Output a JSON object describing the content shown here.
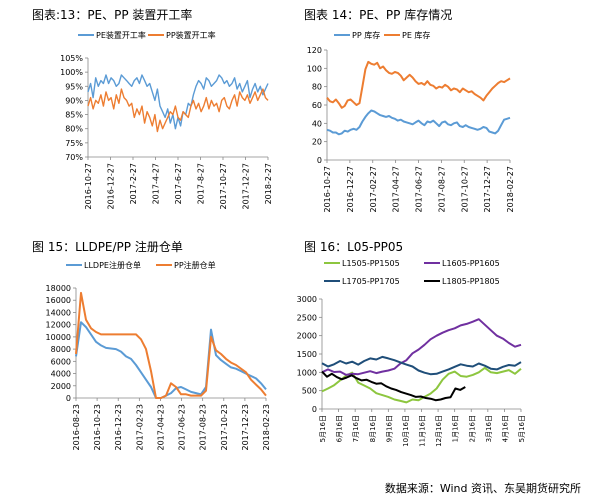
{
  "titles": {
    "c13": "图表:13：PE、PP 装置开工率",
    "c14": "图表 14：PE、PP 库存情况",
    "c15": "图 15：LLDPE/PP 注册仓单",
    "c16": "图 16：L05-PP05"
  },
  "source": "数据来源：Wind 资讯、东吴期货研究所",
  "colors": {
    "blue": "#5b9bd5",
    "orange": "#ed7d31",
    "green": "#8dc63f",
    "purple": "#7030a0",
    "navy": "#1f4e79",
    "black": "#000000"
  },
  "chart_data": [
    {
      "type": "line",
      "title": "图表:13：PE、PP 装置开工率",
      "x_ticks": [
        "2016-10-27",
        "2016-12-27",
        "2017-2-27",
        "2017-4-27",
        "2017-6-27",
        "2017-8-27",
        "2017-10-27",
        "2017-12-27",
        "2018-2-27"
      ],
      "y_ticks": [
        "70%",
        "75%",
        "80%",
        "85%",
        "90%",
        "95%",
        "100%",
        "105%"
      ],
      "ylim": [
        70,
        105
      ],
      "series": [
        {
          "name": "PE装置开工率",
          "color": "#5b9bd5",
          "values": [
            93,
            96,
            91,
            98,
            95,
            97,
            96,
            99,
            96,
            98,
            97,
            95,
            96,
            99,
            98,
            97,
            96,
            95,
            97,
            98,
            96,
            99,
            97,
            95,
            96,
            93,
            90,
            94,
            88,
            86,
            84,
            87,
            82,
            85,
            80,
            84,
            81,
            86,
            85,
            89,
            88,
            92,
            95,
            97,
            96,
            94,
            98,
            97,
            95,
            96,
            97,
            99,
            98,
            96,
            97,
            95,
            96,
            98,
            94,
            96,
            93,
            95,
            97,
            91,
            94,
            96,
            93,
            95,
            92,
            94,
            96
          ]
        },
        {
          "name": "PP装置开工率",
          "color": "#ed7d31",
          "values": [
            88,
            91,
            87,
            90,
            89,
            92,
            88,
            93,
            90,
            91,
            87,
            92,
            89,
            94,
            91,
            90,
            88,
            89,
            84,
            87,
            85,
            88,
            82,
            86,
            84,
            81,
            85,
            79,
            83,
            80,
            82,
            84,
            86,
            85,
            88,
            84,
            83,
            86,
            85,
            84,
            88,
            90,
            87,
            89,
            86,
            88,
            91,
            87,
            90,
            88,
            89,
            86,
            90,
            91,
            88,
            87,
            90,
            92,
            88,
            93,
            91,
            90,
            92,
            89,
            91,
            93,
            90,
            92,
            94,
            91,
            90
          ]
        }
      ]
    },
    {
      "type": "line",
      "title": "图表 14：PE、PP 库存情况",
      "x_ticks": [
        "2016-10-27",
        "2016-12-27",
        "2017-02-27",
        "2017-04-27",
        "2017-06-27",
        "2017-08-27",
        "2017-10-27",
        "2017-12-27",
        "2018-02-27"
      ],
      "y_ticks": [
        "0",
        "20",
        "40",
        "60",
        "80",
        "100",
        "120"
      ],
      "ylim": [
        0,
        120
      ],
      "series": [
        {
          "name": "PP 库存",
          "color": "#5b9bd5",
          "values": [
            33,
            32,
            30,
            30,
            28,
            29,
            32,
            31,
            33,
            34,
            33,
            36,
            42,
            47,
            51,
            54,
            53,
            51,
            49,
            48,
            47,
            48,
            46,
            45,
            43,
            44,
            42,
            41,
            40,
            39,
            41,
            43,
            40,
            38,
            42,
            41,
            43,
            40,
            37,
            41,
            42,
            39,
            38,
            40,
            41,
            37,
            36,
            38,
            36,
            35,
            34,
            33,
            34,
            36,
            35,
            31,
            30,
            29,
            32,
            38,
            44,
            45,
            46
          ]
        },
        {
          "name": "PE 库存",
          "color": "#ed7d31",
          "values": [
            68,
            64,
            63,
            66,
            62,
            57,
            59,
            65,
            66,
            63,
            60,
            62,
            80,
            99,
            107,
            105,
            104,
            106,
            100,
            102,
            98,
            95,
            94,
            96,
            95,
            92,
            87,
            90,
            93,
            90,
            86,
            83,
            84,
            82,
            86,
            82,
            81,
            78,
            80,
            79,
            82,
            80,
            76,
            78,
            77,
            74,
            78,
            76,
            74,
            75,
            72,
            70,
            68,
            65,
            70,
            74,
            78,
            81,
            84,
            86,
            85,
            87,
            89
          ]
        }
      ]
    },
    {
      "type": "line",
      "title": "图 15：LLDPE/PP 注册仓单",
      "x_ticks": [
        "2016-08-23",
        "2016-10-23",
        "2016-12-23",
        "2017-02-23",
        "2017-04-23",
        "2017-06-23",
        "2017-08-23",
        "2017-10-23",
        "2017-12-23",
        "2018-02-23"
      ],
      "y_ticks": [
        "0",
        "2000",
        "4000",
        "6000",
        "8000",
        "10000",
        "12000",
        "14000",
        "16000",
        "18000"
      ],
      "ylim": [
        0,
        18000
      ],
      "series": [
        {
          "name": "LLDPE注册仓单",
          "color": "#5b9bd5",
          "values": [
            6800,
            12400,
            11600,
            10400,
            9200,
            8600,
            8200,
            8100,
            8000,
            7600,
            6800,
            6400,
            5400,
            4200,
            3000,
            1800,
            0,
            0,
            400,
            800,
            1600,
            1800,
            1400,
            1000,
            800,
            600,
            1800,
            11200,
            7000,
            6200,
            5600,
            5000,
            4800,
            4400,
            4000,
            3600,
            3200,
            2400,
            1400
          ]
        },
        {
          "name": "PP注册仓单",
          "color": "#ed7d31",
          "values": [
            7200,
            17200,
            12800,
            11400,
            10800,
            10400,
            10400,
            10400,
            10400,
            10400,
            10400,
            10400,
            10400,
            9600,
            8000,
            4400,
            0,
            0,
            400,
            2400,
            1800,
            600,
            600,
            400,
            400,
            400,
            1200,
            10000,
            7800,
            7200,
            6400,
            5800,
            5400,
            4800,
            4200,
            3000,
            2200,
            1400,
            400
          ]
        }
      ]
    },
    {
      "type": "line",
      "title": "图 16：L05-PP05",
      "x_ticks": [
        "5月16日",
        "6月16日",
        "7月16日",
        "8月16日",
        "9月16日",
        "10月16日",
        "11月16日",
        "12月16日",
        "1月16日",
        "2月16日",
        "3月16日",
        "4月16日",
        "5月16日"
      ],
      "y_ticks": [
        "0",
        "500",
        "1000",
        "1500",
        "2000",
        "2500",
        "3000"
      ],
      "ylim": [
        0,
        3000
      ],
      "series": [
        {
          "name": "L1505-PP1505",
          "color": "#8dc63f",
          "values": [
            480,
            560,
            650,
            780,
            910,
            990,
            720,
            640,
            560,
            430,
            380,
            330,
            260,
            220,
            180,
            260,
            240,
            330,
            420,
            560,
            800,
            960,
            1020,
            900,
            880,
            930,
            1000,
            1120,
            1000,
            980,
            1020,
            1060,
            960,
            1100
          ]
        },
        {
          "name": "L1605-PP1605",
          "color": "#7030a0",
          "values": [
            1000,
            1080,
            1010,
            1020,
            930,
            960,
            950,
            990,
            1030,
            980,
            1020,
            1050,
            1100,
            1240,
            1330,
            1520,
            1620,
            1750,
            1900,
            2000,
            2080,
            2150,
            2200,
            2280,
            2320,
            2380,
            2450,
            2300,
            2150,
            2000,
            1920,
            1800,
            1700,
            1750
          ]
        },
        {
          "name": "L1705-PP1705",
          "color": "#1f4e79",
          "values": [
            1250,
            1160,
            1220,
            1310,
            1240,
            1290,
            1210,
            1310,
            1380,
            1350,
            1420,
            1380,
            1330,
            1270,
            1210,
            1160,
            1050,
            990,
            950,
            960,
            1020,
            1080,
            1150,
            1220,
            1180,
            1160,
            1240,
            1180,
            1100,
            1080,
            1150,
            1200,
            1180,
            1280
          ]
        },
        {
          "name": "L1805-PP1805",
          "color": "#000000",
          "values": [
            1020,
            880,
            960,
            870,
            810,
            860,
            920,
            840,
            780,
            800,
            740,
            690,
            700,
            620,
            560,
            520,
            460,
            420,
            380,
            330,
            340,
            300,
            280,
            240,
            260,
            300,
            320,
            560,
            520,
            600
          ]
        }
      ]
    }
  ]
}
